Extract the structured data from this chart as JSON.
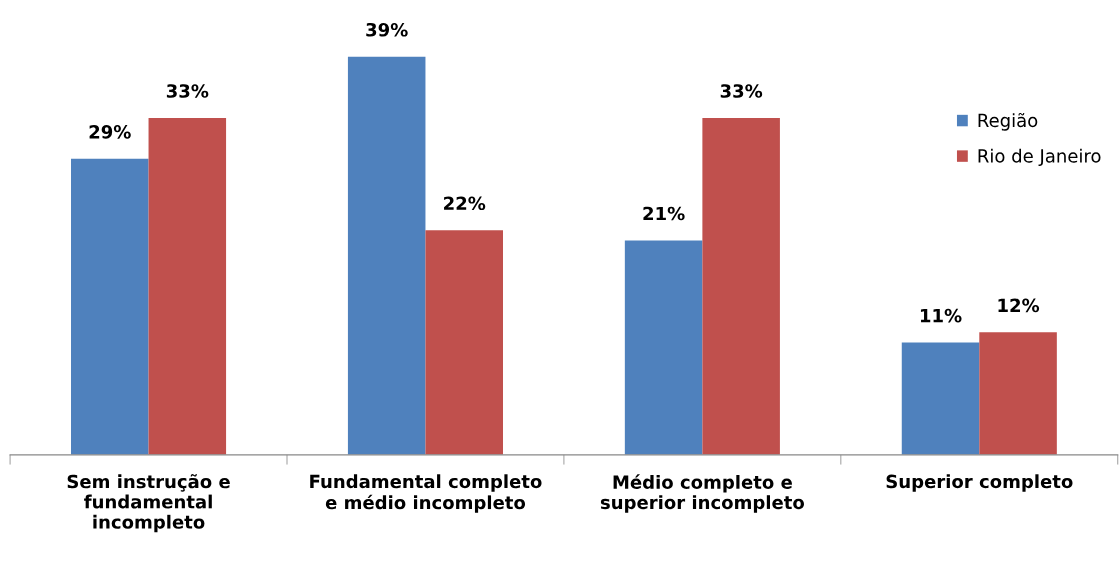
{
  "chart_data": {
    "type": "bar",
    "categories": [
      "Sem instrução e\nfundamental\nincompleto",
      "Fundamental completo\ne médio incompleto",
      "Médio completo e\nsuperior incompleto",
      "Superior completo"
    ],
    "series": [
      {
        "name": "Região",
        "color": "#4f81bd",
        "values": [
          29,
          39,
          21,
          11
        ],
        "value_labels": [
          "29%",
          "39%",
          "21%",
          "11%"
        ]
      },
      {
        "name": "Rio de Janeiro",
        "color": "#c0504d",
        "values": [
          33,
          22,
          33,
          12
        ],
        "value_labels": [
          "33%",
          "22%",
          "33%",
          "12%"
        ]
      }
    ],
    "legend": "right",
    "grid": false
  }
}
